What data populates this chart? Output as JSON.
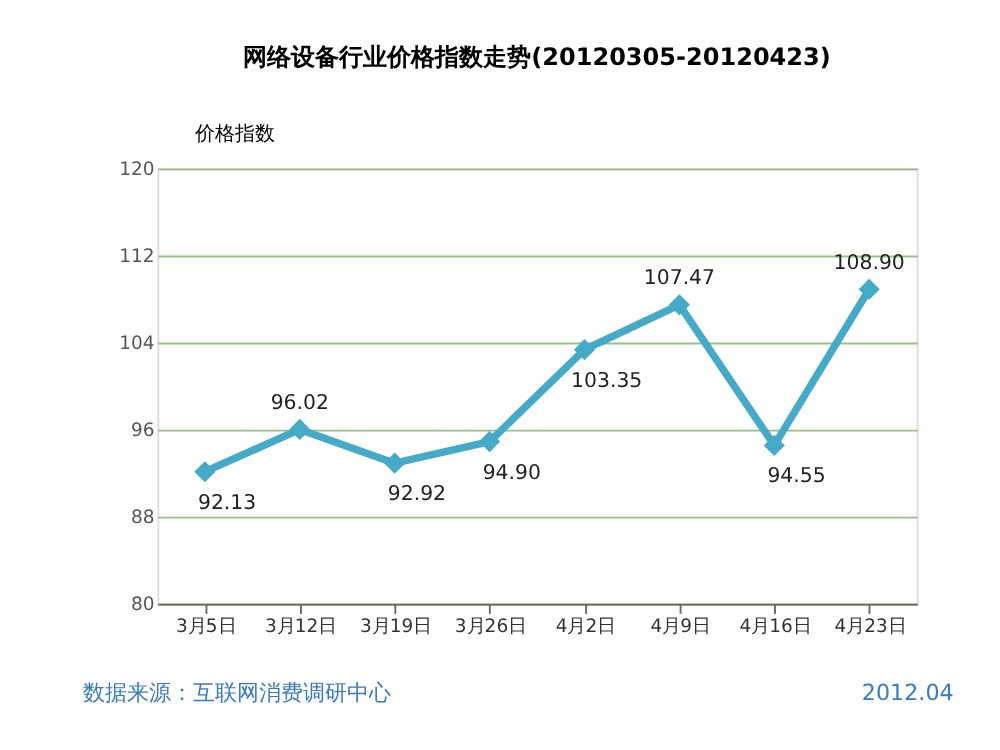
{
  "chart_data": {
    "type": "line",
    "title": "网络设备行业价格指数走势(20120305-20120423)",
    "ylabel": "价格指数",
    "categories": [
      "3月5日",
      "3月12日",
      "3月19日",
      "3月26日",
      "4月2日",
      "4月9日",
      "4月16日",
      "4月23日"
    ],
    "series": [
      {
        "color": "#45a9c8",
        "values": [
          92.13,
          96.02,
          92.92,
          94.9,
          103.35,
          107.47,
          94.55,
          108.9
        ],
        "value_labels": [
          "92.13",
          "96.02",
          "92.92",
          "94.90",
          "103.35",
          "107.47",
          "94.55",
          "108.90"
        ]
      }
    ],
    "ylim": [
      80,
      120
    ],
    "yticks": [
      80,
      88,
      96,
      104,
      112,
      120
    ],
    "grid": "y",
    "marker": "diamond",
    "line_style": "solid",
    "annotations": [
      "数据来源：互联网消费调研中心",
      "2012.04"
    ]
  }
}
